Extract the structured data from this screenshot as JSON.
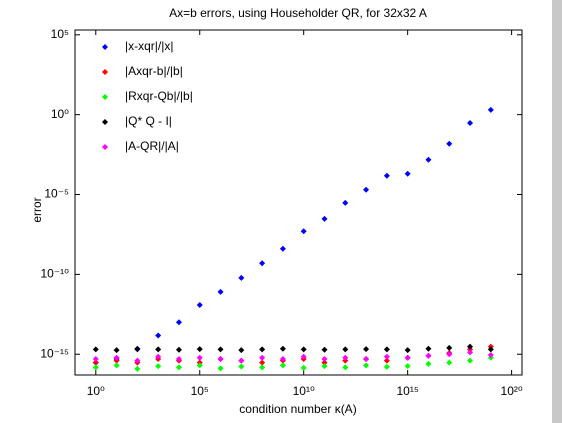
{
  "chart_data": {
    "type": "scatter",
    "title": "Ax=b errors, using Householder QR, for 32x32 A",
    "x_label": "condition number κ(A)",
    "y_label": "error",
    "log_x": true,
    "log_y": true,
    "legend": "upper left",
    "x": [
      1,
      10,
      100,
      1000,
      10000,
      100000,
      1000000,
      10000000,
      100000000,
      1000000000,
      10000000000,
      100000000000,
      1000000000000,
      10000000000000,
      100000000000000,
      1000000000000000,
      10000000000000000,
      100000000000000000,
      1000000000000000000,
      10000000000000000000
    ],
    "series": [
      {
        "name": "|x-xqr|/|x|",
        "color": "#0000ff",
        "values": [
          3e-16,
          5e-16,
          2e-15,
          1.5e-14,
          1e-13,
          1.2e-12,
          8e-12,
          6e-11,
          5e-10,
          4e-09,
          5e-08,
          3e-07,
          3e-06,
          2e-05,
          0.00015,
          0.0002,
          0.0015,
          0.015,
          0.3,
          2
        ]
      },
      {
        "name": "|Axqr-b|/|b|",
        "color": "#ff0000",
        "values": [
          3e-16,
          4e-16,
          3e-16,
          5e-16,
          4e-16,
          3e-16,
          5e-16,
          4e-16,
          3e-16,
          4e-16,
          5e-16,
          3e-16,
          4e-16,
          5e-16,
          4e-16,
          6e-16,
          8e-16,
          1.2e-15,
          2e-15,
          3e-15
        ]
      },
      {
        "name": "|Rxqr-Qb|/|b|",
        "color": "#00ff00",
        "values": [
          1.5e-16,
          2e-16,
          1.2e-16,
          1.8e-16,
          1.5e-16,
          2e-16,
          1.3e-16,
          1.7e-16,
          1.5e-16,
          2e-16,
          1.4e-16,
          1.8e-16,
          1.5e-16,
          2e-16,
          1.6e-16,
          1.8e-16,
          2.5e-16,
          3e-16,
          4e-16,
          6e-16
        ]
      },
      {
        "name": "|Q* Q - I|",
        "color": "#000000",
        "values": [
          2e-15,
          1.8e-15,
          2.2e-15,
          2e-15,
          1.9e-15,
          2.1e-15,
          2e-15,
          1.8e-15,
          2e-15,
          2.2e-15,
          2e-15,
          1.9e-15,
          2e-15,
          2.1e-15,
          2e-15,
          1.8e-15,
          2.2e-15,
          2.5e-15,
          3e-15,
          2e-15
        ]
      },
      {
        "name": "|A-QR|/|A|",
        "color": "#ff00ff",
        "values": [
          5e-16,
          6e-16,
          4e-16,
          7e-16,
          5e-16,
          6e-16,
          5e-16,
          4e-16,
          6e-16,
          5e-16,
          7e-16,
          5e-16,
          6e-16,
          5e-16,
          7e-16,
          6e-16,
          8e-16,
          1e-15,
          1.3e-15,
          9e-16
        ]
      }
    ],
    "xlim": [
      0.1,
      3.16e+20
    ],
    "ylim": [
      5e-17,
      200000
    ],
    "xticks": [
      {
        "value": 1,
        "label": "10⁰"
      },
      {
        "value": 100000,
        "label": "10⁵"
      },
      {
        "value": 10000000000,
        "label": "10¹⁰"
      },
      {
        "value": 1000000000000000,
        "label": "10¹⁵"
      },
      {
        "value": 100000000000000000000,
        "label": "10²⁰"
      }
    ],
    "yticks": [
      {
        "value": 1e-15,
        "label": "10⁻¹⁵"
      },
      {
        "value": 1e-10,
        "label": "10⁻¹⁰"
      },
      {
        "value": 1e-05,
        "label": "10⁻⁵"
      },
      {
        "value": 1,
        "label": "10⁰"
      },
      {
        "value": 100000,
        "label": "10⁵"
      }
    ]
  }
}
